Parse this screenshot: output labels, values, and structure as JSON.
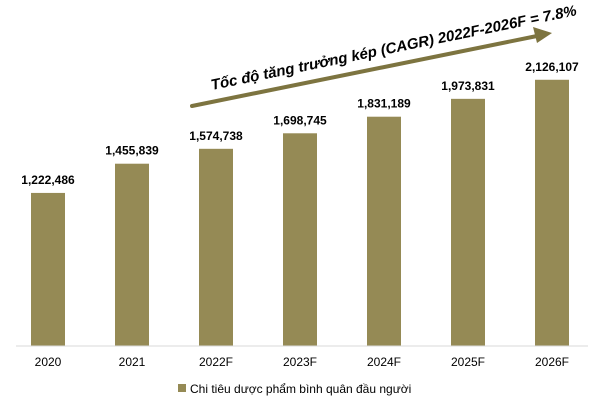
{
  "colors": {
    "bar": "#958a55",
    "arrow": "#7d7440",
    "axis": "#d9d9d9"
  },
  "annotation": {
    "text": "Tốc độ tăng trưởng kép (CAGR) 2022F-2026F = 7.8%"
  },
  "chart_data": {
    "type": "bar",
    "categories": [
      "2020",
      "2021",
      "2022F",
      "2023F",
      "2024F",
      "2025F",
      "2026F"
    ],
    "series": [
      {
        "name": "Chi tiêu dược phẩm bình quân đầu người",
        "values": [
          1222486,
          1455839,
          1574738,
          1698745,
          1831189,
          1973831,
          2126107
        ],
        "labels": [
          "1,222,486",
          "1,455,839",
          "1,574,738",
          "1,698,745",
          "1,831,189",
          "1,973,831",
          "2,126,107"
        ]
      }
    ],
    "ylim": [
      0,
      2300000
    ],
    "grid": false,
    "legend_position": "bottom-left"
  }
}
